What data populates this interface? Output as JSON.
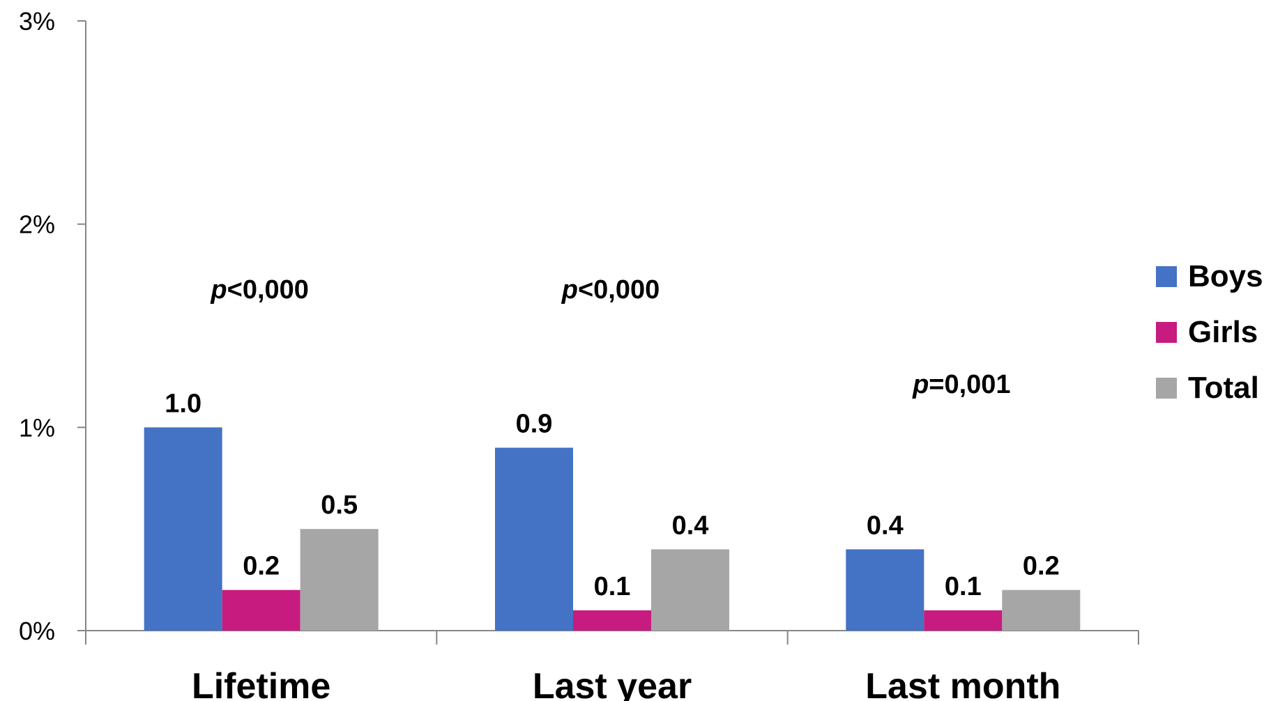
{
  "chart_data": {
    "type": "bar",
    "categories": [
      "Lifetime",
      "Last year",
      "Last month"
    ],
    "series": [
      {
        "name": "Boys",
        "color": "#4472c4",
        "values": [
          1.0,
          0.9,
          0.4
        ],
        "labels": [
          "1.0",
          "0.9",
          "0.4"
        ]
      },
      {
        "name": "Girls",
        "color": "#c71b7f",
        "values": [
          0.2,
          0.1,
          0.1
        ],
        "labels": [
          "0.2",
          "0.1",
          "0.1"
        ]
      },
      {
        "name": "Total",
        "color": "#a6a6a6",
        "values": [
          0.5,
          0.4,
          0.2
        ],
        "labels": [
          "0.5",
          "0.4",
          "0.2"
        ]
      }
    ],
    "annotations": [
      {
        "category": "Lifetime",
        "prefix": "p",
        "text": "<0,000"
      },
      {
        "category": "Last year",
        "prefix": "p",
        "text": "<0,000"
      },
      {
        "category": "Last month",
        "prefix": "p",
        "text": "=0,001"
      }
    ],
    "ylim": [
      0,
      3
    ],
    "yticks": [
      0,
      1,
      2,
      3
    ],
    "ytick_labels": [
      "0%",
      "1%",
      "2%",
      "3%"
    ],
    "title": "",
    "xlabel": "",
    "ylabel": "",
    "grid": false,
    "legend_position": "right"
  }
}
